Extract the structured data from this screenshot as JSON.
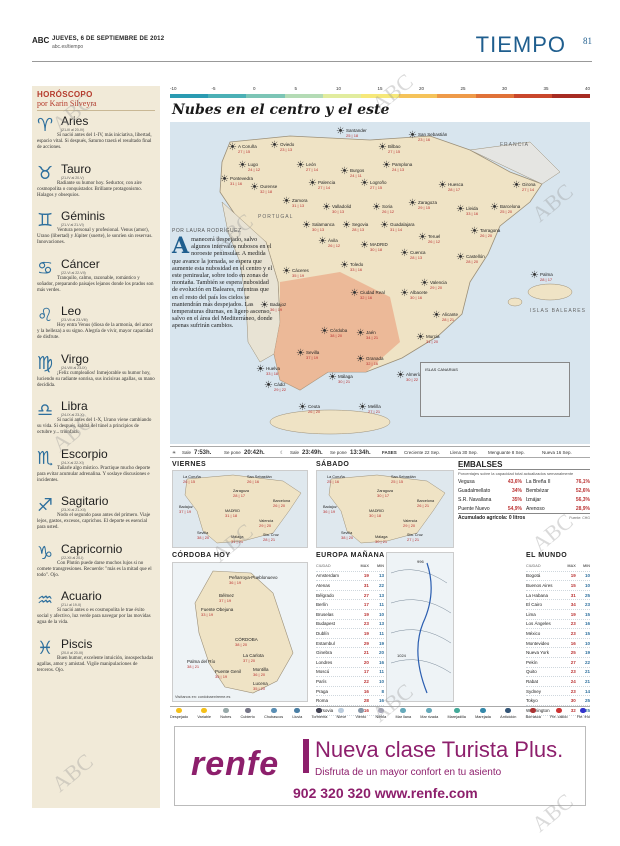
{
  "header": {
    "abc": "ABC",
    "date": "JUEVES, 6 DE SEPTIEMBRE DE 2012",
    "site": "abc.es/tiempo",
    "title": "TIEMPO",
    "page": "81"
  },
  "horoscope": {
    "title": "HORÓSCOPO",
    "author": "por Karin Silveyra",
    "signs": [
      {
        "glyph": "♈",
        "name": "Aries",
        "dates": "(21-III al 20-IV)",
        "text": "Si nació antes del 1-IV, más iniciativa, libertad, espacio vital. Si después, Saturno traerá el resultado final de acciones."
      },
      {
        "glyph": "♉",
        "name": "Tauro",
        "dates": "(21-IV al 20-V)",
        "text": "Radiante su humor hoy. Seductor, con aire cosmopolita o conquistador. Brillante protagonismo. Halagos y obsequios."
      },
      {
        "glyph": "♊",
        "name": "Géminis",
        "dates": "(21-V al 21-VI)",
        "text": "Ventura personal y profesional. Venus (amor), Urano (libertad) y Júpiter (suerte), le sonríen sin reservas. Innovaciones."
      },
      {
        "glyph": "♋",
        "name": "Cáncer",
        "dates": "(22-VI al 22-VII)",
        "text": "Tranquilo, calmo, razonable, romántico y soñador, preparando paisajes lejanos donde los prados son más verdes."
      },
      {
        "glyph": "♌",
        "name": "Leo",
        "dates": "(23-VII al 23-VIII)",
        "text": "Hoy entra Venus (diosa de la armonía, del amor y la belleza) a su signo. Alegría de vivir, mayor capacidad de disfrute."
      },
      {
        "glyph": "♍",
        "name": "Virgo",
        "dates": "(24-VIII al 23-IX)",
        "text": "¡Feliz cumpleaños! Inmejorable su humor hoy, luciendo su radiante sonrisa, sus incisivas agallas, su mano decidida."
      },
      {
        "glyph": "♎",
        "name": "Libra",
        "dates": "(24-IX al 23-X)",
        "text": "Si nació antes del 1-X, Urano viene cambiando su vida. Si después, saldrá del túnel a principios de octubre y... triunfará."
      },
      {
        "glyph": "♏",
        "name": "Escorpio",
        "dates": "(24-X al 22-XI)",
        "text": "Tañarle algo místico. Practique mucho deporte para evitar acumular adrenalina. Y soslaye discusiones e incidentes."
      },
      {
        "glyph": "♐",
        "name": "Sagitario",
        "dates": "(23-XI al 21-XII)",
        "text": "Nodo el segundo paso antes del primero. Viaje lejos, gastos, excesos, caprichos. El deporte es esencial para usted."
      },
      {
        "glyph": "♑",
        "name": "Capricornio",
        "dates": "(22-XII al 20-I)",
        "text": "Con Plutón puede darse muchos lujos si no comete transgresiones. Recuerde: \"más es la mitad que el todo\". Ojo."
      },
      {
        "glyph": "♒",
        "name": "Acuario",
        "dates": "(21-I al 19-II)",
        "text": "Si nació antes o es cosmopolita le trae éxito social y afectivo, luz verde para navegar por las movidas agua de la vida."
      },
      {
        "glyph": "♓",
        "name": "Piscis",
        "dates": "(20-II al 20-III)",
        "text": "Buen humor, excelente intuición, insospechadas agallas, amor y amistad. Vigile manipulaciones de terceros. Ojo."
      }
    ]
  },
  "scale": {
    "labels": [
      "-10",
      "-5",
      "0",
      "5",
      "10",
      "15",
      "20",
      "25",
      "30",
      "35",
      "40"
    ],
    "colors": [
      "#2a9bb2",
      "#4bb0b6",
      "#7cc5b6",
      "#b4dbb5",
      "#e1ec9e",
      "#f6e87a",
      "#f5c35a",
      "#ee9a49",
      "#e07239",
      "#c9472c",
      "#a72b22"
    ]
  },
  "main_title": "Nubes en el centro y el este",
  "map": {
    "regions": [
      "PORTUGAL",
      "FRANCIA",
      "ISLAS BALEARES"
    ],
    "canarias_title": "ISLAS CANARIAS",
    "cities": [
      {
        "name": "A Coruña",
        "temps": "27 | 15"
      },
      {
        "name": "Oviedo",
        "temps": "23 | 13"
      },
      {
        "name": "Santander",
        "temps": "25 | 18"
      },
      {
        "name": "Bilbao",
        "temps": "27 | 15"
      },
      {
        "name": "San Sebastián",
        "temps": "23 | 16"
      },
      {
        "name": "Lugo",
        "temps": "24 | 12"
      },
      {
        "name": "León",
        "temps": "27 | 14"
      },
      {
        "name": "Burgos",
        "temps": "24 | 11"
      },
      {
        "name": "Pamplona",
        "temps": "24 | 13"
      },
      {
        "name": "Huesca",
        "temps": "28 | 17"
      },
      {
        "name": "Girona",
        "temps": "27 | 14"
      },
      {
        "name": "Pontevedra",
        "temps": "31 | 16"
      },
      {
        "name": "Ourense",
        "temps": "32 | 18"
      },
      {
        "name": "Palencia",
        "temps": "27 | 14"
      },
      {
        "name": "Logroño",
        "temps": "27 | 15"
      },
      {
        "name": "Zaragoza",
        "temps": "29 | 15"
      },
      {
        "name": "Lleida",
        "temps": "33 | 16"
      },
      {
        "name": "Barcelona",
        "temps": "25 | 20"
      },
      {
        "name": "Zamora",
        "temps": "31 | 13"
      },
      {
        "name": "Valladolid",
        "temps": "30 | 13"
      },
      {
        "name": "Soria",
        "temps": "26 | 12"
      },
      {
        "name": "Tarragona",
        "temps": "26 | 20"
      },
      {
        "name": "Salamanca",
        "temps": "30 | 13"
      },
      {
        "name": "Segovia",
        "temps": "28 | 13"
      },
      {
        "name": "Guadalajara",
        "temps": "31 | 14"
      },
      {
        "name": "Teruel",
        "temps": "26 | 12"
      },
      {
        "name": "Castellón",
        "temps": "28 | 20"
      },
      {
        "name": "Ávila",
        "temps": "26 | 12"
      },
      {
        "name": "MADRID",
        "temps": "30 | 18"
      },
      {
        "name": "Cuenca",
        "temps": "28 | 13"
      },
      {
        "name": "Palma",
        "temps": "28 | 17"
      },
      {
        "name": "Cáceres",
        "temps": "35 | 19"
      },
      {
        "name": "Toledo",
        "temps": "33 | 16"
      },
      {
        "name": "Valencia",
        "temps": "29 | 20"
      },
      {
        "name": "Ciudad Real",
        "temps": "32 | 16"
      },
      {
        "name": "Albacete",
        "temps": "30 | 16"
      },
      {
        "name": "Badajoz",
        "temps": "36 | 19"
      },
      {
        "name": "Alicante",
        "temps": "28 | 21"
      },
      {
        "name": "Córdoba",
        "temps": "38 | 20"
      },
      {
        "name": "Jaén",
        "temps": "34 | 21"
      },
      {
        "name": "Murcia",
        "temps": "31 | 20"
      },
      {
        "name": "Sevilla",
        "temps": "37 | 19"
      },
      {
        "name": "Granada",
        "temps": "32 | 16"
      },
      {
        "name": "Huelva",
        "temps": "33 | 18"
      },
      {
        "name": "Málaga",
        "temps": "30 | 21"
      },
      {
        "name": "Almería",
        "temps": "30 | 22"
      },
      {
        "name": "Cádiz",
        "temps": "29 | 22"
      },
      {
        "name": "Ceuta",
        "temps": "26 | 20"
      },
      {
        "name": "Melilla",
        "temps": "27 | 21"
      },
      {
        "name": "Santa Cruz de Tenerife",
        "temps": "28 | 21"
      },
      {
        "name": "Las Palmas de Gran Canaria",
        "temps": "28 | 24"
      }
    ]
  },
  "article": {
    "byline": "POR LAURA RODRÍGUEZ",
    "drop": "A",
    "text": "manecerá despejado, salvo algunos intervalos nubosos en el noroeste peninsular. A medida que avance la jornada, se espera que aumente esta nubosidad en el centro y el este peninsular, sobre todo en zonas de montaña. También se espera nubosidad de evolución en Baleares, mientras que en el resto del país los cielos se mantendrán más despejados. Las temperaturas diurnas, en ligero ascenso, salvo en el área del Mediterráneo, donde apenas sufrirán cambios."
  },
  "strip": {
    "sale_label": "Sale",
    "sun_rise": "7:53h.",
    "pone_label": "Se pone",
    "sun_set": "20:42h.",
    "moon_rise_label": "Sale",
    "moon_rise": "23:49h.",
    "moon_set_label": "Se pone",
    "moon_set": "13:34h.",
    "phases_label": "FASES",
    "phases": [
      "Creciente 22 Sep.",
      "Llena 30 Sep.",
      "Menguante 8 Sep.",
      "Nueva 16 Sep."
    ]
  },
  "forecast": {
    "viernes": "VIERNES",
    "sabado": "SÁBADO",
    "viernes_cities": [
      {
        "name": "La Coruña",
        "temps": "26 | 15"
      },
      {
        "name": "San Sebastián",
        "temps": "26 | 16"
      },
      {
        "name": "Zaragoza",
        "temps": "28 | 17"
      },
      {
        "name": "Barcelona",
        "temps": "26 | 20"
      },
      {
        "name": "Badajoz",
        "temps": "37 | 19"
      },
      {
        "name": "MADRID",
        "temps": "31 | 18"
      },
      {
        "name": "Valencia",
        "temps": "29 | 20"
      },
      {
        "name": "Sevilla",
        "temps": "38 | 20"
      },
      {
        "name": "Málaga",
        "temps": "31 | 21"
      },
      {
        "name": "Sta. Cruz",
        "temps": "28 | 21"
      }
    ],
    "sabado_cities": [
      {
        "name": "La Coruña",
        "temps": "25 | 16"
      },
      {
        "name": "San Sebastián",
        "temps": "25 | 15"
      },
      {
        "name": "Zaragoza",
        "temps": "30 | 17"
      },
      {
        "name": "Barcelona",
        "temps": "26 | 21"
      },
      {
        "name": "Badajoz",
        "temps": "36 | 19"
      },
      {
        "name": "MADRID",
        "temps": "30 | 18"
      },
      {
        "name": "Valencia",
        "temps": "29 | 20"
      },
      {
        "name": "Sevilla",
        "temps": "38 | 20"
      },
      {
        "name": "Málaga",
        "temps": "30 | 21"
      },
      {
        "name": "Sta. Cruz",
        "temps": "27 | 21"
      }
    ]
  },
  "embalses": {
    "title": "EMBALSES",
    "subtitle": "Porcentajes sobre la capacidad total actualizados semanalmente",
    "rows": [
      {
        "a": "Vegusa",
        "av": "43,6%",
        "b": "La Breña II",
        "bv": "76,1%"
      },
      {
        "a": "Guadalmellato",
        "av": "34%",
        "b": "Bembézar",
        "bv": "52,6%"
      },
      {
        "a": "S.R. Navallana",
        "av": "35%",
        "b": "Iznájar",
        "bv": "56,3%"
      },
      {
        "a": "Puente Nuevo",
        "av": "54,9%",
        "b": "Arenoso",
        "bv": "28,9%"
      }
    ],
    "total_label": "Acumulado agrícola: 0 litros",
    "source": "Fuente: CHG"
  },
  "cordoba": {
    "title": "CÓRDOBA HOY",
    "towns": [
      {
        "name": "Peñarroya-Pueblonuevo",
        "temps": "36 | 19"
      },
      {
        "name": "Bélmez",
        "temps": "37 | 19"
      },
      {
        "name": "Fuente Obejuna",
        "temps": "33 | 19"
      },
      {
        "name": "CÓRDOBA",
        "temps": "38 | 20"
      },
      {
        "name": "La Carlota",
        "temps": "37 | 20"
      },
      {
        "name": "Palma del Río",
        "temps": "38 | 21"
      },
      {
        "name": "Puente Genil",
        "temps": "35 | 19"
      },
      {
        "name": "Montilla",
        "temps": "36 | 20"
      },
      {
        "name": "Lucena",
        "temps": "35 | 20"
      }
    ],
    "credit": "Visítanos en: cordobaextreme.es"
  },
  "europa": {
    "title": "EUROPA MAÑANA",
    "head_city": "CIUDAD",
    "head_max": "MAX",
    "head_min": "MIN",
    "pressure": [
      "996",
      "1024"
    ],
    "rows": [
      [
        "Amsterdam",
        "19",
        "13"
      ],
      [
        "Atenas",
        "31",
        "22"
      ],
      [
        "Bélgrado",
        "27",
        "13"
      ],
      [
        "Berlín",
        "17",
        "11"
      ],
      [
        "Bruselas",
        "19",
        "10"
      ],
      [
        "Budapest",
        "23",
        "13"
      ],
      [
        "Dublín",
        "19",
        "11"
      ],
      [
        "Estambul",
        "29",
        "19"
      ],
      [
        "Ginebra",
        "21",
        "20"
      ],
      [
        "Londres",
        "20",
        "16"
      ],
      [
        "Moscú",
        "17",
        "11"
      ],
      [
        "París",
        "22",
        "10"
      ],
      [
        "Praga",
        "16",
        "8"
      ],
      [
        "Roma",
        "28",
        "16"
      ],
      [
        "Varsovia",
        "16",
        "9"
      ]
    ]
  },
  "mundo": {
    "title": "EL MUNDO",
    "head_city": "CIUDAD",
    "head_max": "MAX",
    "head_min": "MIN",
    "rows": [
      [
        "Bogotá",
        "19",
        "10"
      ],
      [
        "Buenos Aires",
        "15",
        "10"
      ],
      [
        "La Habana",
        "31",
        "25"
      ],
      [
        "El Cairo",
        "34",
        "23"
      ],
      [
        "Lima",
        "19",
        "15"
      ],
      [
        "Los Ángeles",
        "23",
        "16"
      ],
      [
        "México",
        "23",
        "15"
      ],
      [
        "Montevideo",
        "16",
        "10"
      ],
      [
        "Nueva York",
        "25",
        "19"
      ],
      [
        "Pekín",
        "27",
        "22"
      ],
      [
        "Quito",
        "23",
        "21"
      ],
      [
        "Rabat",
        "24",
        "21"
      ],
      [
        "Sydney",
        "23",
        "14"
      ],
      [
        "Tokyo",
        "30",
        "25"
      ],
      [
        "Washington",
        "32",
        "25"
      ]
    ]
  },
  "legend": {
    "items": [
      {
        "label": "Despejado",
        "color": "#f5c019"
      },
      {
        "label": "Variable",
        "color": "#f5c019"
      },
      {
        "label": "Nubes",
        "color": "#9aa"
      },
      {
        "label": "Cubierto",
        "color": "#778"
      },
      {
        "label": "Chubascos",
        "color": "#5a8fb5"
      },
      {
        "label": "Lluvia",
        "color": "#4a7fa5"
      },
      {
        "label": "Tormenta",
        "color": "#445"
      },
      {
        "label": "Nieve",
        "color": "#bcd"
      },
      {
        "label": "Viento",
        "color": "#89a"
      },
      {
        "label": "Niebla",
        "color": "#aab"
      },
      {
        "label": "Mar llana",
        "color": "#6ab"
      },
      {
        "label": "Mar rizada",
        "color": "#6ab"
      },
      {
        "label": "Marejadilla",
        "color": "#4a9"
      },
      {
        "label": "Marejada",
        "color": "#38a"
      },
      {
        "label": "Anticiclón",
        "color": "#357"
      },
      {
        "label": "Borrasca",
        "color": "#a33"
      },
      {
        "label": "Fte. cálido",
        "color": "#c33"
      },
      {
        "label": "Fte. frío",
        "color": "#33c"
      }
    ]
  },
  "ad": {
    "logo": "renfe",
    "headline": "Nueva clase Turista Plus.",
    "sub": "Disfruta de un mayor confort en tu asiento",
    "phone": "902 320 320 www.renfe.com"
  },
  "watermark": "ABC"
}
